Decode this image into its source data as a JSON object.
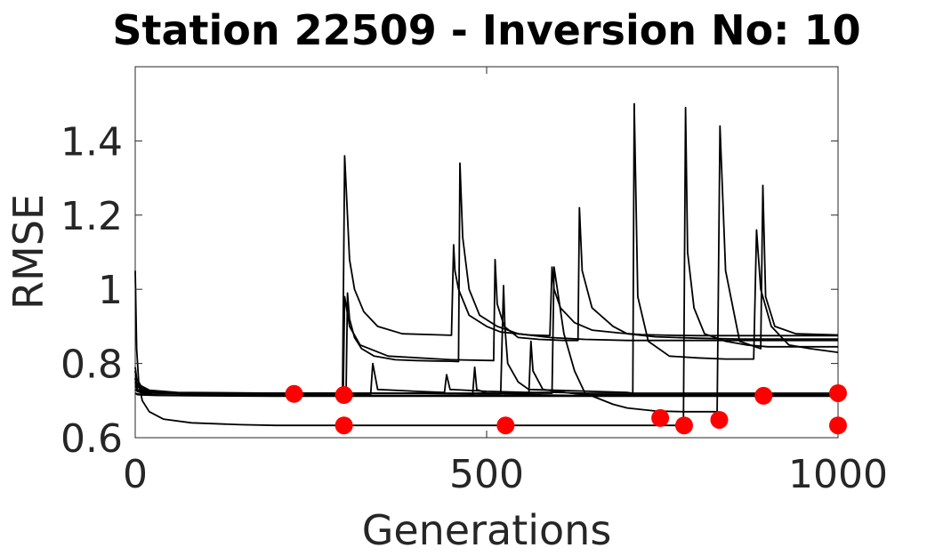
{
  "chart_data": {
    "type": "line",
    "title": "Station 22509 - Inversion No: 10",
    "xlabel": "Generations",
    "ylabel": "RMSE",
    "xlim": [
      0,
      1000
    ],
    "ylim": [
      0.6,
      1.6
    ],
    "xticks": [
      0,
      500,
      1000
    ],
    "xtick_labels": [
      "0",
      "500",
      "1000"
    ],
    "yticks": [
      0.6,
      0.8,
      1.0,
      1.2,
      1.4
    ],
    "ytick_labels": [
      "0.6",
      "0.8",
      "1",
      "1.2",
      "1.4"
    ],
    "grid": false,
    "line_color": "#000000",
    "marker_color": "#ff0000",
    "series": [
      {
        "x": [
          0,
          2,
          8,
          20,
          60,
          200,
          295,
          298,
          300,
          305,
          312,
          325,
          345,
          380,
          420,
          450,
          453,
          455,
          460,
          475,
          500,
          520,
          560,
          590,
          593,
          596,
          605,
          625,
          650,
          690,
          720,
          760,
          800,
          860,
          1000
        ],
        "y": [
          0.79,
          0.76,
          0.74,
          0.728,
          0.722,
          0.72,
          0.72,
          1.36,
          1.28,
          1.08,
          1.0,
          0.94,
          0.9,
          0.88,
          0.878,
          0.876,
          1.12,
          1.05,
          1.0,
          0.93,
          0.9,
          0.885,
          0.877,
          0.875,
          1.06,
          1.0,
          0.95,
          0.91,
          0.89,
          0.882,
          0.878,
          0.876,
          0.875,
          0.875,
          0.875
        ]
      },
      {
        "x": [
          0,
          2,
          8,
          20,
          60,
          200,
          300,
          302,
          305,
          312,
          322,
          340,
          370,
          400,
          420,
          450,
          460,
          462,
          466,
          475,
          490,
          515,
          545,
          590,
          640,
          700,
          760,
          830,
          880,
          1000
        ],
        "y": [
          0.78,
          0.75,
          0.735,
          0.725,
          0.72,
          0.718,
          0.718,
          0.99,
          0.92,
          0.87,
          0.84,
          0.82,
          0.81,
          0.808,
          0.807,
          0.806,
          0.805,
          1.34,
          1.14,
          1.0,
          0.93,
          0.9,
          0.88,
          0.87,
          0.865,
          0.862,
          0.862,
          0.862,
          0.862,
          0.862
        ]
      },
      {
        "x": [
          0,
          2,
          8,
          20,
          60,
          200,
          296,
          298,
          305,
          320,
          360,
          450,
          510,
          512,
          515,
          525,
          545,
          575,
          610,
          630,
          632,
          636,
          650,
          680,
          700,
          740,
          800,
          860,
          1000
        ],
        "y": [
          0.76,
          0.74,
          0.73,
          0.722,
          0.72,
          0.72,
          0.72,
          0.98,
          0.9,
          0.85,
          0.82,
          0.81,
          0.808,
          1.08,
          0.96,
          0.9,
          0.87,
          0.865,
          0.862,
          0.862,
          1.22,
          1.05,
          0.95,
          0.9,
          0.88,
          0.872,
          0.868,
          0.866,
          0.866
        ]
      },
      {
        "x": [
          0,
          3,
          10,
          30,
          80,
          200,
          400,
          500,
          520,
          524,
          526,
          530,
          545,
          560,
          700,
          708,
          710,
          715,
          730,
          760,
          800,
          840,
          870,
          880,
          884,
          890,
          905,
          930,
          960,
          1000
        ],
        "y": [
          0.75,
          0.73,
          0.725,
          0.72,
          0.72,
          0.72,
          0.72,
          0.718,
          0.718,
          1.01,
          0.9,
          0.8,
          0.75,
          0.73,
          0.722,
          0.72,
          1.5,
          0.98,
          0.86,
          0.82,
          0.815,
          0.812,
          0.812,
          0.812,
          1.16,
          1.0,
          0.9,
          0.85,
          0.84,
          0.83
        ]
      },
      {
        "x": [
          0,
          2,
          5,
          10,
          20,
          40,
          80,
          150,
          200,
          300,
          500,
          600,
          620,
          640,
          660,
          760,
          780,
          783,
          786,
          795,
          810,
          840,
          870,
          900,
          1000
        ],
        "y": [
          1.05,
          0.84,
          0.75,
          0.7,
          0.67,
          0.65,
          0.64,
          0.635,
          0.633,
          0.633,
          0.633,
          0.633,
          0.633,
          0.633,
          0.633,
          0.633,
          0.633,
          1.49,
          1.1,
          0.95,
          0.88,
          0.86,
          0.85,
          0.845,
          0.845
        ]
      },
      {
        "x": [
          0,
          3,
          10,
          30,
          80,
          200,
          300,
          400,
          500,
          593,
          596,
          610,
          625,
          640,
          680,
          700,
          740,
          780,
          820,
          828,
          832,
          840,
          860,
          890,
          893,
          897,
          910,
          940,
          1000
        ],
        "y": [
          0.76,
          0.74,
          0.728,
          0.722,
          0.72,
          0.72,
          0.72,
          0.72,
          0.72,
          0.72,
          1.06,
          0.88,
          0.78,
          0.72,
          0.69,
          0.68,
          0.672,
          0.67,
          0.67,
          0.67,
          1.44,
          1.05,
          0.86,
          0.84,
          1.28,
          0.98,
          0.9,
          0.88,
          0.877
        ]
      },
      {
        "x": [
          0,
          3,
          10,
          30,
          80,
          200,
          300,
          335,
          338,
          345,
          400,
          440,
          443,
          448,
          500,
          560,
          600,
          640,
          660,
          690,
          760,
          800,
          830,
          900,
          1000
        ],
        "y": [
          0.74,
          0.73,
          0.722,
          0.72,
          0.718,
          0.718,
          0.718,
          0.718,
          0.8,
          0.73,
          0.725,
          0.722,
          0.77,
          0.73,
          0.725,
          0.722,
          0.722,
          0.72,
          0.72,
          0.72,
          0.72,
          0.72,
          0.72,
          0.72,
          0.72
        ]
      },
      {
        "x": [
          0,
          3,
          10,
          30,
          80,
          200,
          300,
          400,
          480,
          483,
          486,
          500,
          580,
          620,
          650,
          700,
          750,
          900,
          1000
        ],
        "y": [
          0.73,
          0.725,
          0.72,
          0.715,
          0.714,
          0.714,
          0.714,
          0.714,
          0.714,
          0.79,
          0.73,
          0.72,
          0.715,
          0.714,
          0.714,
          0.714,
          0.714,
          0.714,
          0.714
        ]
      },
      {
        "x": [
          0,
          3,
          10,
          30,
          80,
          200,
          300,
          400,
          560,
          563,
          566,
          580,
          620,
          640,
          700,
          760,
          900,
          1000
        ],
        "y": [
          0.72,
          0.718,
          0.716,
          0.715,
          0.714,
          0.714,
          0.714,
          0.714,
          0.714,
          0.86,
          0.78,
          0.73,
          0.72,
          0.716,
          0.716,
          0.716,
          0.716,
          0.716
        ]
      },
      {
        "x": [
          0,
          3,
          10,
          30,
          80,
          200,
          300,
          500,
          520,
          522,
          540,
          580,
          620,
          660,
          700,
          740,
          760,
          780,
          800,
          1000
        ],
        "y": [
          0.72,
          0.716,
          0.715,
          0.714,
          0.713,
          0.712,
          0.712,
          0.712,
          0.712,
          0.712,
          0.712,
          0.712,
          0.712,
          0.712,
          0.712,
          0.712,
          0.712,
          0.712,
          0.712,
          0.712
        ]
      }
    ],
    "markers": {
      "x": [
        226,
        297,
        297,
        527,
        747,
        781,
        831,
        894,
        1000,
        1000
      ],
      "y": [
        0.718,
        0.715,
        0.633,
        0.633,
        0.653,
        0.633,
        0.648,
        0.713,
        0.72,
        0.633
      ]
    }
  }
}
